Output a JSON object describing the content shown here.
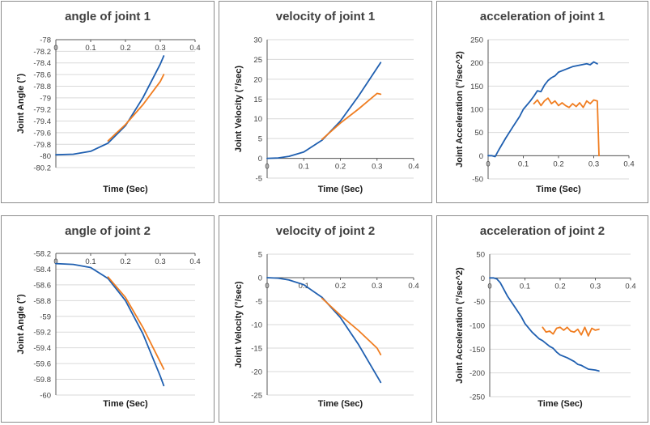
{
  "colors": {
    "model": "#1f5fb0",
    "measured": "#f07d20",
    "axis": "#595959",
    "grid": "#d9d9d9",
    "tick": "#404040"
  },
  "chart_data": [
    {
      "type": "line",
      "title": "angle of joint 1",
      "xlabel": "Time (Sec)",
      "ylabel": "Joint Angle (°)",
      "xlim": [
        0,
        0.4
      ],
      "ylim": [
        -80.2,
        -78
      ],
      "x_ticks": [
        "0",
        "0.1",
        "0.2",
        "0.3",
        "0.4"
      ],
      "y_ticks": [
        "-78",
        "-78.2",
        "-78.4",
        "-78.6",
        "-78.8",
        "-79",
        "-79.2",
        "-79.4",
        "-79.6",
        "-79.8",
        "-80",
        "-80.2"
      ],
      "x_axis_at": -78,
      "series": [
        {
          "name": "blue",
          "x": [
            0,
            0.05,
            0.1,
            0.15,
            0.2,
            0.25,
            0.3,
            0.31
          ],
          "y": [
            -79.98,
            -79.97,
            -79.92,
            -79.78,
            -79.48,
            -79.0,
            -78.42,
            -78.28
          ]
        },
        {
          "name": "orange",
          "x": [
            0.15,
            0.2,
            0.25,
            0.3,
            0.31
          ],
          "y": [
            -79.74,
            -79.46,
            -79.12,
            -78.72,
            -78.6
          ]
        }
      ]
    },
    {
      "type": "line",
      "title": "velocity of joint 1",
      "xlabel": "Time (Sec)",
      "ylabel": "Joint Velocity (°/sec)",
      "xlim": [
        0,
        0.4
      ],
      "ylim": [
        -5,
        30
      ],
      "x_ticks": [
        "0",
        "0.1",
        "0.2",
        "0.3",
        "0.4"
      ],
      "y_ticks": [
        "-5",
        "0",
        "5",
        "10",
        "15",
        "20",
        "25",
        "30"
      ],
      "x_axis_at": 0,
      "series": [
        {
          "name": "blue",
          "x": [
            0,
            0.03,
            0.06,
            0.1,
            0.15,
            0.2,
            0.25,
            0.31
          ],
          "y": [
            0,
            0.1,
            0.5,
            1.6,
            4.6,
            9.4,
            15.8,
            24.2
          ]
        },
        {
          "name": "orange",
          "x": [
            0.15,
            0.2,
            0.25,
            0.3,
            0.31
          ],
          "y": [
            4.8,
            8.9,
            12.5,
            16.4,
            16.2
          ]
        }
      ]
    },
    {
      "type": "line",
      "title": "acceleration of joint 1",
      "xlabel": "Time (Sec)",
      "ylabel": "Joint Acceleration (°/sec^2)",
      "xlim": [
        0,
        0.4
      ],
      "ylim": [
        -50,
        250
      ],
      "x_ticks": [
        "0",
        "0.1",
        "0.2",
        "0.3",
        "0.4"
      ],
      "y_ticks": [
        "-50",
        "0",
        "50",
        "100",
        "150",
        "200",
        "250"
      ],
      "x_axis_at": 0,
      "series": [
        {
          "name": "blue",
          "x": [
            0,
            0.01,
            0.02,
            0.03,
            0.05,
            0.07,
            0.09,
            0.1,
            0.12,
            0.13,
            0.14,
            0.15,
            0.16,
            0.17,
            0.18,
            0.19,
            0.2,
            0.22,
            0.24,
            0.26,
            0.28,
            0.29,
            0.3,
            0.31
          ],
          "y": [
            0,
            0,
            -2,
            12,
            38,
            62,
            85,
            100,
            118,
            128,
            140,
            138,
            152,
            162,
            168,
            172,
            180,
            186,
            192,
            195,
            198,
            196,
            202,
            198
          ]
        },
        {
          "name": "orange",
          "x": [
            0.13,
            0.14,
            0.15,
            0.16,
            0.17,
            0.18,
            0.19,
            0.2,
            0.21,
            0.22,
            0.23,
            0.24,
            0.25,
            0.26,
            0.27,
            0.28,
            0.29,
            0.3,
            0.31,
            0.315
          ],
          "y": [
            112,
            120,
            108,
            118,
            124,
            112,
            118,
            108,
            114,
            108,
            104,
            112,
            106,
            114,
            104,
            118,
            112,
            120,
            118,
            0
          ]
        }
      ]
    },
    {
      "type": "line",
      "title": "angle of joint 2",
      "xlabel": "Time (Sec)",
      "ylabel": "Joint Angle (°)",
      "xlim": [
        0,
        0.4
      ],
      "ylim": [
        -60,
        -58.2
      ],
      "x_ticks": [
        "0",
        "0.1",
        "0.2",
        "0.3",
        "0.4"
      ],
      "y_ticks": [
        "-58.2",
        "-58.4",
        "-58.6",
        "-58.8",
        "-59",
        "-59.2",
        "-59.4",
        "-59.6",
        "-59.8",
        "-60"
      ],
      "x_axis_at": -58.2,
      "series": [
        {
          "name": "blue",
          "x": [
            0,
            0.05,
            0.1,
            0.15,
            0.2,
            0.25,
            0.3,
            0.31
          ],
          "y": [
            -58.33,
            -58.34,
            -58.38,
            -58.52,
            -58.8,
            -59.22,
            -59.76,
            -59.88
          ]
        },
        {
          "name": "orange",
          "x": [
            0.15,
            0.2,
            0.25,
            0.3,
            0.31
          ],
          "y": [
            -58.5,
            -58.76,
            -59.14,
            -59.58,
            -59.67
          ]
        }
      ]
    },
    {
      "type": "line",
      "title": "velocity of joint 2",
      "xlabel": "Time (Sec)",
      "ylabel": "Joint Velocity (°/sec)",
      "xlim": [
        0,
        0.4
      ],
      "ylim": [
        -25,
        5
      ],
      "x_ticks": [
        "0",
        "0.1",
        "0.2",
        "0.3",
        "0.4"
      ],
      "y_ticks": [
        "5",
        "0",
        "-5",
        "-10",
        "-15",
        "-20",
        "-25"
      ],
      "x_axis_at": 0,
      "series": [
        {
          "name": "blue",
          "x": [
            0,
            0.03,
            0.06,
            0.1,
            0.15,
            0.2,
            0.25,
            0.31
          ],
          "y": [
            0,
            -0.1,
            -0.5,
            -1.5,
            -4.2,
            -8.5,
            -14.3,
            -22.3
          ]
        },
        {
          "name": "orange",
          "x": [
            0.15,
            0.2,
            0.25,
            0.3,
            0.31
          ],
          "y": [
            -4.4,
            -8.0,
            -11.3,
            -15.0,
            -16.4
          ]
        }
      ]
    },
    {
      "type": "line",
      "title": "acceleration of joint 2",
      "xlabel": "Time (Sec)",
      "ylabel": "Joint Acceleration (°/sec^2)",
      "xlim": [
        0,
        0.4
      ],
      "ylim": [
        -250,
        50
      ],
      "x_ticks": [
        "0",
        "0.1",
        "0.2",
        "0.3",
        "0.4"
      ],
      "y_ticks": [
        "50",
        "0",
        "-50",
        "-100",
        "-150",
        "-200",
        "-250"
      ],
      "x_axis_at": 0,
      "series": [
        {
          "name": "blue",
          "x": [
            0,
            0.01,
            0.02,
            0.03,
            0.05,
            0.07,
            0.09,
            0.1,
            0.12,
            0.14,
            0.15,
            0.16,
            0.17,
            0.18,
            0.19,
            0.2,
            0.22,
            0.24,
            0.25,
            0.26,
            0.28,
            0.3,
            0.31
          ],
          "y": [
            0,
            0,
            -2,
            -10,
            -38,
            -60,
            -82,
            -96,
            -114,
            -128,
            -132,
            -138,
            -144,
            -148,
            -156,
            -162,
            -168,
            -176,
            -182,
            -184,
            -192,
            -194,
            -196
          ]
        },
        {
          "name": "orange",
          "x": [
            0.15,
            0.16,
            0.17,
            0.18,
            0.19,
            0.2,
            0.21,
            0.22,
            0.23,
            0.24,
            0.25,
            0.26,
            0.27,
            0.28,
            0.29,
            0.3,
            0.31
          ],
          "y": [
            -104,
            -114,
            -112,
            -118,
            -106,
            -104,
            -110,
            -104,
            -112,
            -114,
            -108,
            -120,
            -104,
            -122,
            -106,
            -110,
            -108
          ]
        }
      ]
    }
  ]
}
